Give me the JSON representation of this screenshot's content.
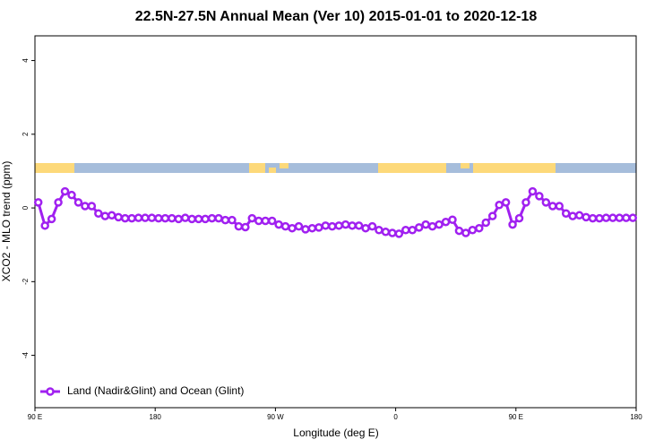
{
  "chart_data": {
    "type": "line",
    "title": "22.5N-27.5N Annual Mean (Ver 10)   2015-01-01 to 2020-12-18",
    "x_label": "Longitude (deg E)",
    "y_label": "XCO2 - MLO trend (ppm)",
    "x": [
      92.5,
      97.5,
      102.5,
      107.5,
      112.5,
      117.5,
      122.5,
      127.5,
      132.5,
      137.5,
      142.5,
      147.5,
      152.5,
      157.5,
      162.5,
      167.5,
      172.5,
      177.5,
      182.5,
      187.5,
      192.5,
      197.5,
      202.5,
      207.5,
      212.5,
      217.5,
      222.5,
      227.5,
      232.5,
      237.5,
      242.5,
      247.5,
      252.5,
      257.5,
      262.5,
      267.5,
      272.5,
      277.5,
      282.5,
      287.5,
      292.5,
      297.5,
      302.5,
      307.5,
      312.5,
      317.5,
      322.5,
      327.5,
      332.5,
      337.5,
      342.5,
      347.5,
      352.5,
      357.5,
      362.5,
      367.5,
      372.5,
      377.5,
      382.5,
      387.5,
      392.5,
      397.5,
      402.5,
      407.5,
      412.5,
      417.5,
      422.5,
      427.5,
      432.5,
      437.5,
      442.5,
      447.5,
      452.5,
      457.5,
      462.5,
      467.5,
      472.5,
      477.5,
      482.5,
      487.5,
      492.5,
      497.5,
      502.5,
      507.5,
      512.5,
      517.5,
      522.5,
      527.5,
      532.5,
      537.5
    ],
    "series": [
      {
        "name": "Land (Nadir&Glint) and Ocean (Glint)",
        "color": "#a020f0",
        "values": [
          0.15,
          -0.48,
          -0.3,
          0.15,
          0.45,
          0.35,
          0.15,
          0.05,
          0.05,
          -0.15,
          -0.22,
          -0.2,
          -0.25,
          -0.28,
          -0.28,
          -0.27,
          -0.27,
          -0.27,
          -0.28,
          -0.28,
          -0.28,
          -0.3,
          -0.27,
          -0.3,
          -0.3,
          -0.3,
          -0.28,
          -0.28,
          -0.33,
          -0.33,
          -0.5,
          -0.52,
          -0.28,
          -0.35,
          -0.35,
          -0.35,
          -0.45,
          -0.5,
          -0.55,
          -0.5,
          -0.58,
          -0.55,
          -0.53,
          -0.48,
          -0.5,
          -0.48,
          -0.45,
          -0.48,
          -0.48,
          -0.55,
          -0.5,
          -0.6,
          -0.65,
          -0.68,
          -0.7,
          -0.6,
          -0.6,
          -0.53,
          -0.45,
          -0.5,
          -0.45,
          -0.38,
          -0.32,
          -0.62,
          -0.68,
          -0.6,
          -0.55,
          -0.4,
          -0.22,
          0.08,
          0.15,
          -0.45,
          -0.28,
          0.15,
          0.45,
          0.32,
          0.15,
          0.05,
          0.05,
          -0.15,
          -0.22,
          -0.2,
          -0.25,
          -0.28,
          -0.28,
          -0.27,
          -0.27,
          -0.27,
          -0.27,
          -0.27
        ]
      }
    ],
    "xlim": [
      90,
      540
    ],
    "xticks": [
      {
        "value": 90,
        "label": "90 E"
      },
      180,
      {
        "value": 270,
        "label": "90 W"
      },
      {
        "value": 360,
        "label": "0"
      },
      {
        "value": 450,
        "label": "90 E"
      },
      {
        "value": 540,
        "label": "180"
      }
    ],
    "ylim": [
      -5.42,
      4.67
    ],
    "yticks": [
      -4,
      -2,
      0,
      2,
      4
    ],
    "legend": "bottom-left"
  }
}
